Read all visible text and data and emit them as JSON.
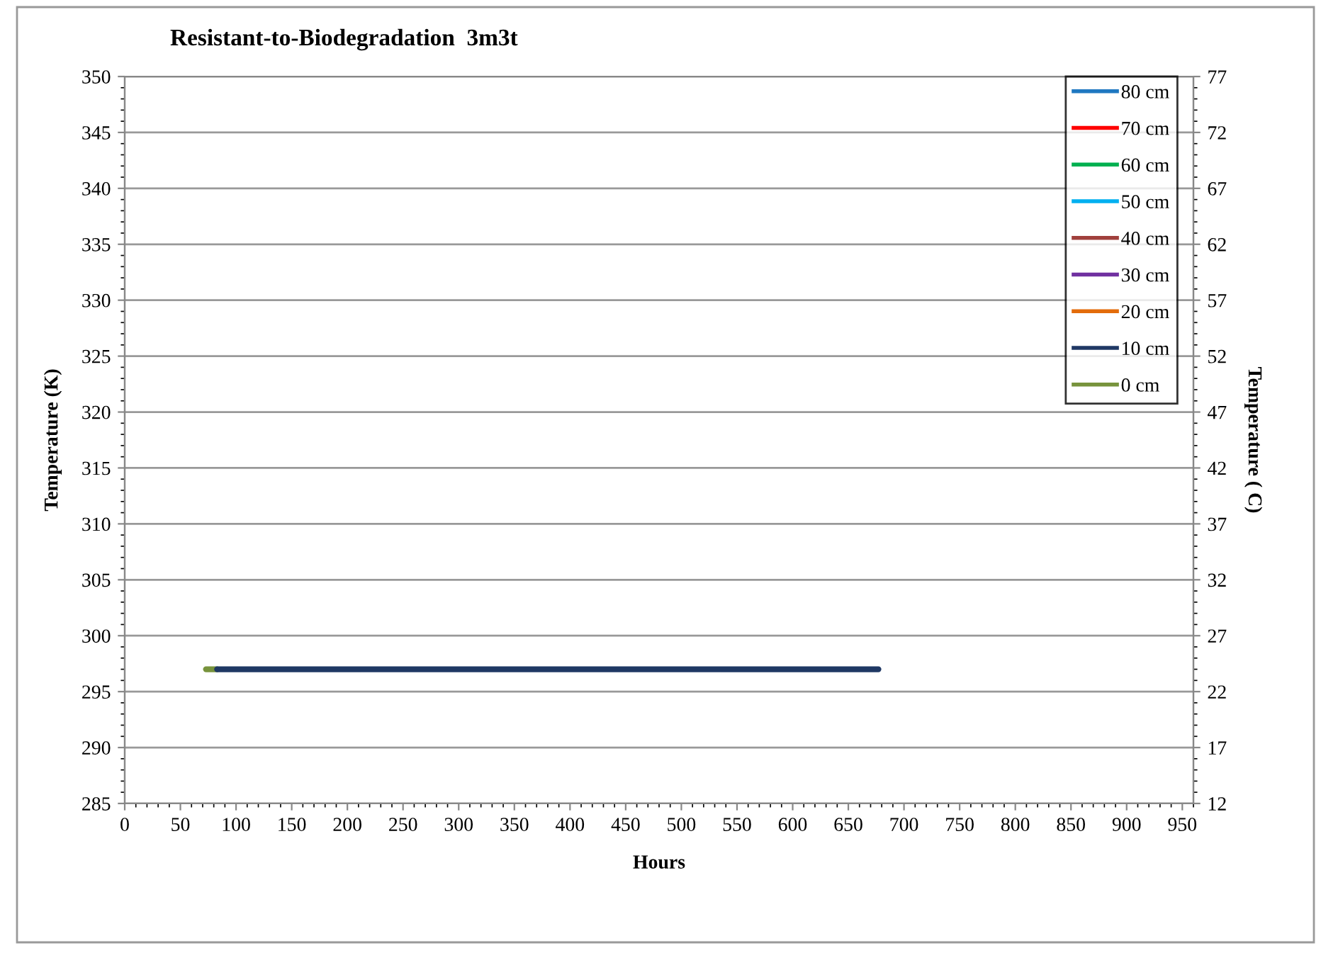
{
  "chart_data": {
    "type": "line",
    "title": "Resistant-to-Biodegradation  3m3t",
    "xlabel": "Hours",
    "ylabel": "Temperature (K)",
    "y2label": "Temperature ( C)",
    "xlim": [
      0,
      960
    ],
    "xticks": [
      0,
      50,
      100,
      150,
      200,
      250,
      300,
      350,
      400,
      450,
      500,
      550,
      600,
      650,
      700,
      750,
      800,
      850,
      900,
      950
    ],
    "ylim": [
      285,
      350
    ],
    "yticks": [
      285,
      290,
      295,
      300,
      305,
      310,
      315,
      320,
      325,
      330,
      335,
      340,
      345,
      350
    ],
    "y2lim": [
      12,
      77
    ],
    "y2ticks": [
      12,
      17,
      22,
      27,
      32,
      37,
      42,
      47,
      52,
      57,
      62,
      67,
      72,
      77
    ],
    "grid": "y",
    "legend": "top right",
    "marker": "none",
    "line_style": "solid",
    "series": [
      {
        "name": "80 cm",
        "color": "#1f78c1"
      },
      {
        "name": "70 cm",
        "color": "#ff0000"
      },
      {
        "name": "60 cm",
        "color": "#00b050"
      },
      {
        "name": "50 cm",
        "color": "#00b0f0"
      },
      {
        "name": "40 cm",
        "color": "#a0403c"
      },
      {
        "name": "30 cm",
        "color": "#7030a0"
      },
      {
        "name": "20 cm",
        "color": "#e36c0a"
      },
      {
        "name": "10 cm",
        "color": "#1f3864",
        "x": [
          83,
          677
        ],
        "values": [
          297,
          297
        ]
      },
      {
        "name": "0 cm",
        "color": "#77933c",
        "x": [
          73,
          83
        ],
        "values": [
          297,
          297
        ]
      }
    ]
  }
}
